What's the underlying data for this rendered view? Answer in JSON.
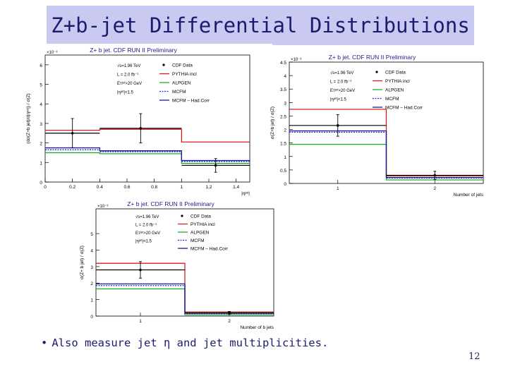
{
  "slide": {
    "title": "Z+b-jet Differential Distributions",
    "bullet": "Also measure jet η and jet multiplicities.",
    "page_number": "12"
  },
  "legend_labels": {
    "energy": "√s=1.96 TeV",
    "lumi": "L = 2.0 fb⁻¹",
    "et_cut": "Eᴛʲᵉᵗ>20 GeV",
    "eta_cut": "|ηʲᵉᵗ|<1.5"
  },
  "colors": {
    "data": "#000000",
    "pythia": "#d62020",
    "alpgen": "#1fae2a",
    "mcfm": "#2a2ad6",
    "mcfm_had": "#1a1a9a"
  },
  "chart_data": [
    {
      "type": "line",
      "name": "eta",
      "title": "Z+ b jet. CDF RUN II Preliminary",
      "xlabel": "|ηʲᵉᵗ|",
      "ylabel": "(dσ(Z+b jet)/d|ηʲᵉᵗ|) / σ(Z)",
      "y_multiplier": "×10⁻³",
      "xlim": [
        0,
        1.5
      ],
      "ylim": [
        0,
        6.5
      ],
      "x_ticks": [
        "0",
        "0.2",
        "0.4",
        "0.6",
        "0.8",
        "1",
        "1.2",
        "1.4"
      ],
      "y_ticks": [
        "0",
        "1",
        "2",
        "3",
        "4",
        "5",
        "6"
      ],
      "bin_edges": [
        0,
        0.4,
        1.0,
        1.5
      ],
      "data": {
        "name": "CDF Data",
        "x": [
          0.2,
          0.7,
          1.25
        ],
        "y": [
          2.5,
          2.75,
          0.85
        ],
        "err": [
          0.75,
          0.75,
          0.35
        ]
      },
      "series": [
        {
          "name": "PYTHIA incl",
          "key": "pythia",
          "values": [
            2.65,
            2.7,
            2.05
          ]
        },
        {
          "name": "ALPGEN",
          "key": "alpgen",
          "values": [
            1.5,
            1.45,
            0.95
          ]
        },
        {
          "name": "MCFM",
          "key": "mcfm",
          "values": [
            1.65,
            1.55,
            1.05
          ]
        },
        {
          "name": "MCFM – Had.Corr",
          "key": "mcfm_had",
          "values": [
            1.75,
            1.6,
            1.1
          ]
        }
      ],
      "grid": false,
      "legend": "top-right"
    },
    {
      "type": "line",
      "name": "njet",
      "title": "Z+ b jet. CDF RUN II Preliminary",
      "xlabel": "Number of jets",
      "ylabel": "σ(Z+b jet) / σ(Z)",
      "y_multiplier": "×10⁻³",
      "xlim": [
        0.5,
        2.5
      ],
      "ylim": [
        0,
        4.5
      ],
      "x_ticks": [
        "1",
        "2"
      ],
      "y_ticks": [
        "0",
        "0.5",
        "1",
        "1.5",
        "2",
        "2.5",
        "3",
        "3.5",
        "4",
        "4.5"
      ],
      "bin_edges": [
        0.5,
        1.5,
        2.5
      ],
      "data": {
        "name": "CDF Data",
        "x": [
          1,
          2
        ],
        "y": [
          2.15,
          0.3
        ],
        "err": [
          0.4,
          0.15
        ]
      },
      "series": [
        {
          "name": "PYTHIA incl",
          "key": "pythia",
          "values": [
            2.75,
            0.28
          ]
        },
        {
          "name": "ALPGEN",
          "key": "alpgen",
          "values": [
            1.45,
            0.13
          ]
        },
        {
          "name": "MCFM",
          "key": "mcfm",
          "values": [
            1.9,
            0.2
          ]
        },
        {
          "name": "MCFM – Had.Corr",
          "key": "mcfm_had",
          "values": [
            1.95,
            0.22
          ]
        }
      ],
      "grid": false,
      "legend": "top-right"
    },
    {
      "type": "line",
      "name": "nbjet",
      "title": "Z+ b jet. CDF RUN II Preliminary",
      "xlabel": "Number of b jets",
      "ylabel": "σ(Z+ b jet) / σ(Z)",
      "y_multiplier": "×10⁻³",
      "xlim": [
        0.5,
        2.5
      ],
      "ylim": [
        0,
        6.5
      ],
      "x_ticks": [
        "1",
        "2"
      ],
      "y_ticks": [
        "0",
        "1",
        "2",
        "3",
        "4",
        "5"
      ],
      "bin_edges": [
        0.5,
        1.5,
        2.5
      ],
      "data": {
        "name": "CDF Data",
        "x": [
          1,
          2
        ],
        "y": [
          2.8,
          0.2
        ],
        "err": [
          0.5,
          0.08
        ]
      },
      "series": [
        {
          "name": "PYTHIA incl",
          "key": "pythia",
          "values": [
            3.2,
            0.25
          ]
        },
        {
          "name": "ALPGEN",
          "key": "alpgen",
          "values": [
            1.65,
            0.08
          ]
        },
        {
          "name": "MCFM",
          "key": "mcfm",
          "values": [
            1.85,
            0.15
          ]
        },
        {
          "name": "MCFM – Had.Corr",
          "key": "mcfm_had",
          "values": [
            1.95,
            0.17
          ]
        }
      ],
      "grid": false,
      "legend": "top-right"
    }
  ]
}
